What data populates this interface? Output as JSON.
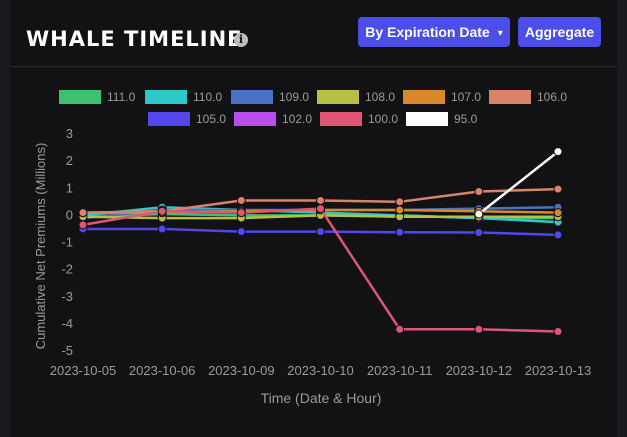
{
  "header": {
    "title": "WHALE TIMELINE",
    "info_icon": "info-icon",
    "expiration_button": "By Expiration Date",
    "expiration_chevron": "▾",
    "aggregate_button": "Aggregate"
  },
  "chart_data": {
    "type": "line",
    "xlabel": "Time (Date & Hour)",
    "ylabel": "Cumulative Net Premiums (Millions)",
    "ylim": [
      -5,
      3
    ],
    "yticks": [
      3,
      2,
      1,
      0,
      -1,
      -2,
      -3,
      -4,
      -5
    ],
    "x": [
      "2023-10-05",
      "2023-10-06",
      "2023-10-09",
      "2023-10-10",
      "2023-10-11",
      "2023-10-12",
      "2023-10-13"
    ],
    "legend_position": "top",
    "series": [
      {
        "name": "111.0",
        "color": "#3cc26e",
        "values": [
          -0.05,
          0.05,
          0.0,
          0.0,
          0.0,
          -0.1,
          -0.1
        ]
      },
      {
        "name": "110.0",
        "color": "#2ec8c8",
        "values": [
          0.0,
          0.3,
          0.2,
          0.1,
          0.0,
          -0.1,
          -0.25
        ]
      },
      {
        "name": "109.0",
        "color": "#4a72c4",
        "values": [
          -0.1,
          0.2,
          0.2,
          0.2,
          0.2,
          0.25,
          0.3
        ]
      },
      {
        "name": "108.0",
        "color": "#b7bf45",
        "values": [
          -0.05,
          -0.1,
          -0.1,
          0.0,
          -0.05,
          -0.05,
          -0.05
        ]
      },
      {
        "name": "107.0",
        "color": "#d9892a",
        "values": [
          0.1,
          0.1,
          0.15,
          0.2,
          0.2,
          0.15,
          0.1
        ]
      },
      {
        "name": "106.0",
        "color": "#d9846a",
        "values": [
          0.1,
          0.15,
          0.55,
          0.55,
          0.5,
          0.88,
          0.97
        ]
      },
      {
        "name": "105.0",
        "color": "#5346ec",
        "values": [
          -0.5,
          -0.5,
          -0.6,
          -0.6,
          -0.62,
          -0.63,
          -0.72
        ]
      },
      {
        "name": "102.0",
        "color": "#b84ee8",
        "values": [
          null,
          null,
          null,
          null,
          null,
          null,
          null
        ]
      },
      {
        "name": "100.0",
        "color": "#e05575",
        "values": [
          -0.35,
          0.15,
          0.1,
          0.25,
          -4.2,
          -4.2,
          -4.28
        ]
      },
      {
        "name": "95.0",
        "color": "#ffffff",
        "values": [
          null,
          null,
          null,
          null,
          null,
          0.05,
          2.35
        ]
      }
    ]
  }
}
